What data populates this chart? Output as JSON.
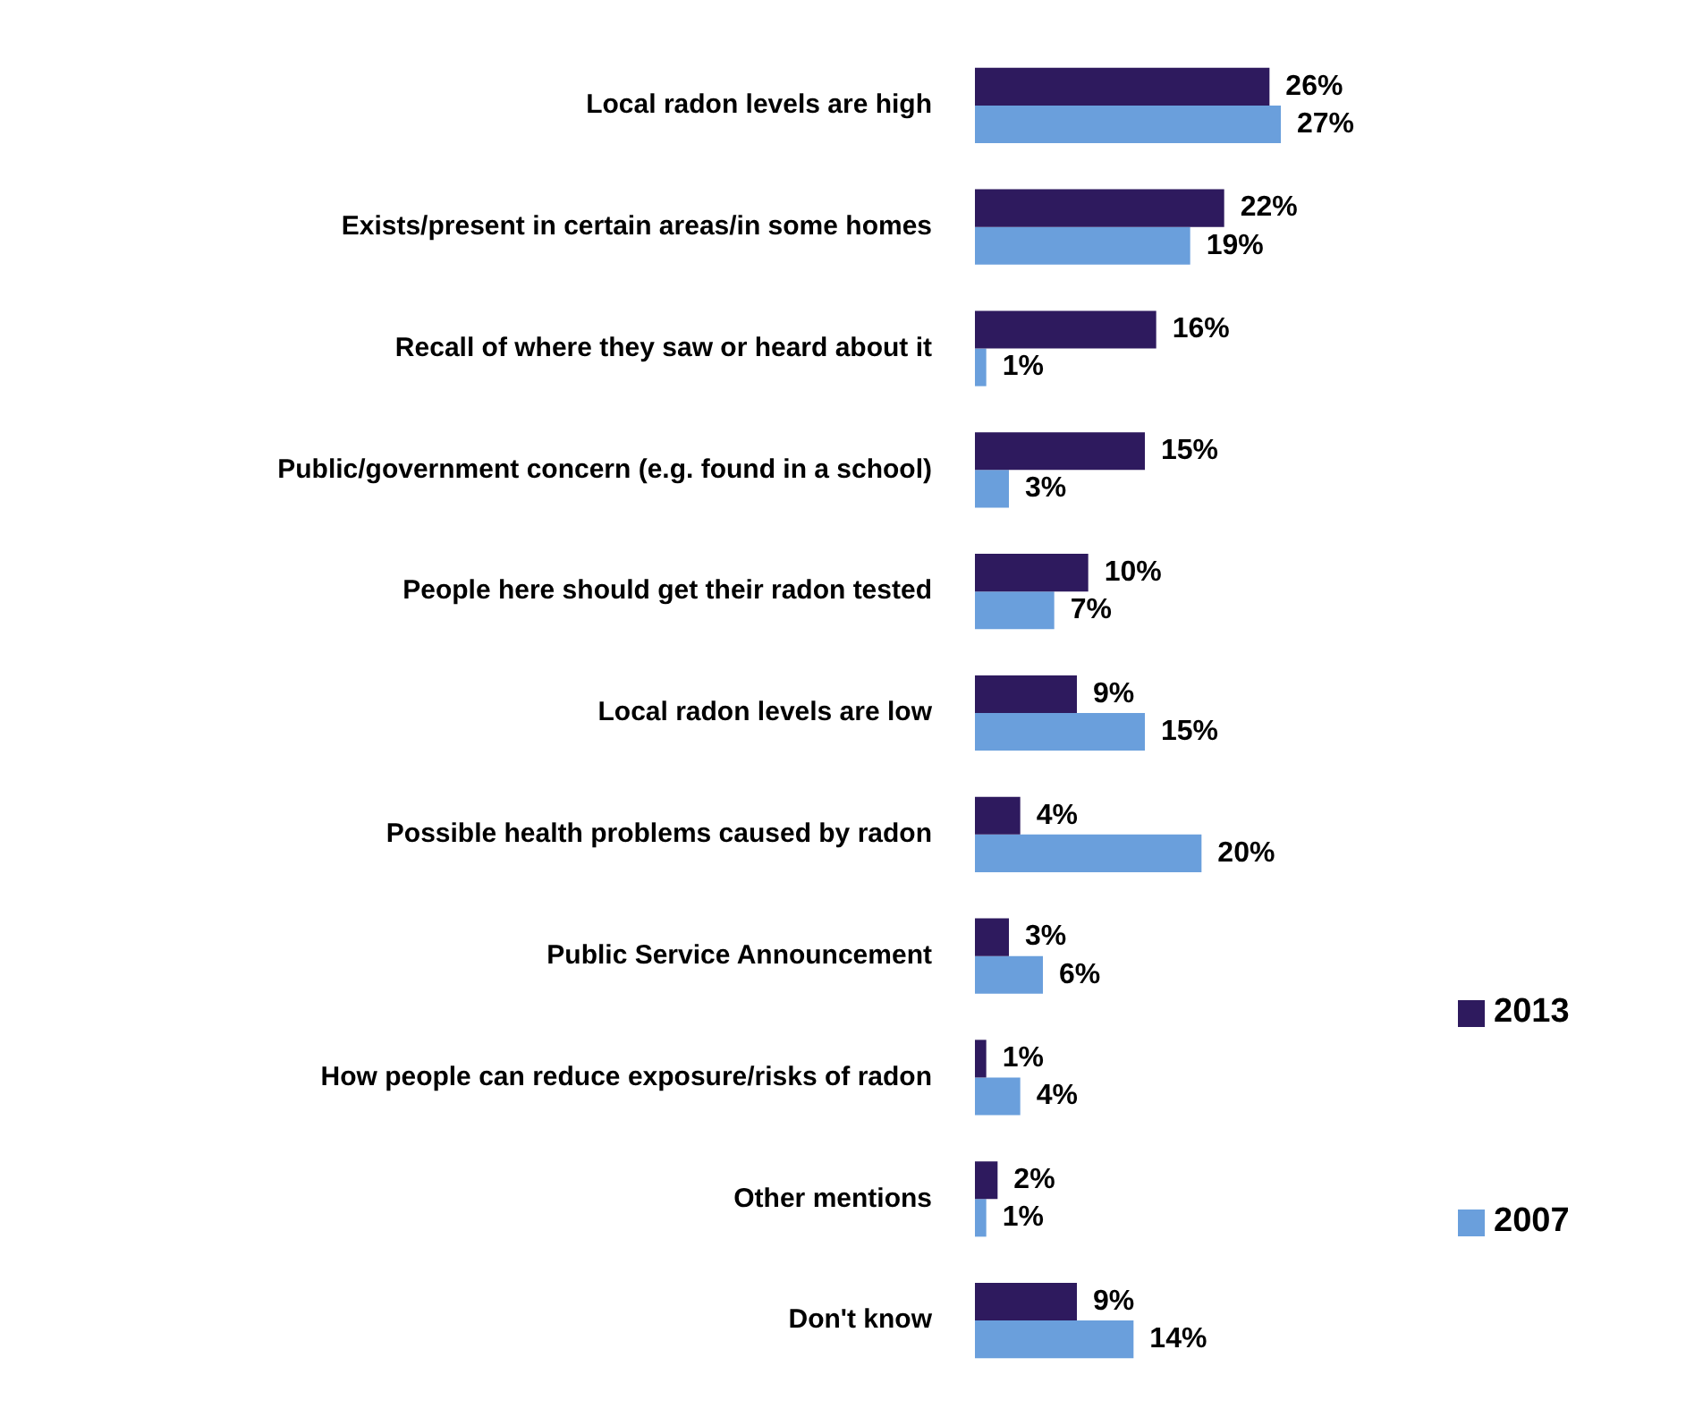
{
  "chart_data": {
    "type": "bar",
    "orientation": "horizontal",
    "legend": "right",
    "categories": [
      "Local radon levels are high",
      "Exists/present in certain areas/in some homes",
      "Recall of where they saw or heard about it",
      "Public/government concern (e.g. found in a school)",
      "People here should get their radon tested",
      "Local radon levels are low",
      "Possible health problems caused by radon",
      "Public Service Announcement",
      "How people can reduce exposure/risks of radon",
      "Other mentions",
      "Don't know"
    ],
    "series": [
      {
        "name": "2013",
        "color": "#2e1a5e",
        "values": [
          26,
          22,
          16,
          15,
          10,
          9,
          4,
          3,
          1,
          2,
          9
        ],
        "value_labels": [
          "26%",
          "22%",
          "16%",
          "15%",
          "10%",
          "9%",
          "4%",
          "3%",
          "1%",
          "2%",
          "9%"
        ]
      },
      {
        "name": "2007",
        "color": "#6a9fdc",
        "values": [
          27,
          19,
          1,
          3,
          7,
          15,
          20,
          6,
          4,
          1,
          14
        ],
        "value_labels": [
          "27%",
          "19%",
          "1%",
          "3%",
          "7%",
          "15%",
          "20%",
          "6%",
          "4%",
          "1%",
          "14%"
        ]
      }
    ]
  }
}
